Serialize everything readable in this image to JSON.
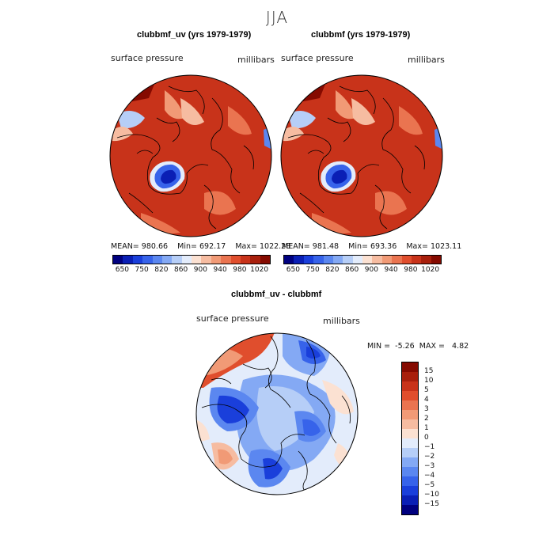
{
  "title": "JJA",
  "panels": [
    {
      "title": "clubbmf_uv (yrs 1979-1979)",
      "variable": "surface pressure",
      "units": "millibars",
      "mean": "980.66",
      "min": "692.17",
      "max": "1022.28"
    },
    {
      "title": "clubbmf (yrs 1979-1979)",
      "variable": "surface pressure",
      "units": "millibars",
      "mean": "981.48",
      "min": "693.36",
      "max": "1023.11"
    }
  ],
  "diff": {
    "title": "clubbmf_uv - clubbmf",
    "variable": "surface pressure",
    "units": "millibars",
    "min": "-5.26",
    "max": "4.82"
  },
  "labels": {
    "mean_prefix": "MEAN=",
    "min_prefix": "Min=",
    "max_prefix": "Max=",
    "min_upper": "MIN =",
    "max_upper": "MAX ="
  },
  "top_colorbar": {
    "colors": [
      "#00007f",
      "#0a1fb5",
      "#1a3fdb",
      "#3763ea",
      "#5b87f0",
      "#84a9f4",
      "#b6cef7",
      "#e3ecfb",
      "#fbe1d2",
      "#f6bca1",
      "#f19a76",
      "#ea7450",
      "#e04e2d",
      "#c8331a",
      "#a81f0c",
      "#850a00"
    ],
    "ticks": [
      "650",
      "750",
      "820",
      "860",
      "900",
      "940",
      "980",
      "1020"
    ]
  },
  "diff_colorbar": {
    "colors": [
      "#00007f",
      "#0a1fb5",
      "#1a3fdb",
      "#3763ea",
      "#5b87f0",
      "#84a9f4",
      "#b6cef7",
      "#e3ecfb",
      "#fbe1d2",
      "#f6bca1",
      "#f19a76",
      "#ea7450",
      "#e04e2d",
      "#c8331a",
      "#a81f0c",
      "#850a00"
    ],
    "ticks": [
      "15",
      "10",
      "5",
      "4",
      "3",
      "2",
      "1",
      "0",
      "−1",
      "−2",
      "−3",
      "−4",
      "−5",
      "−10",
      "−15"
    ]
  }
}
